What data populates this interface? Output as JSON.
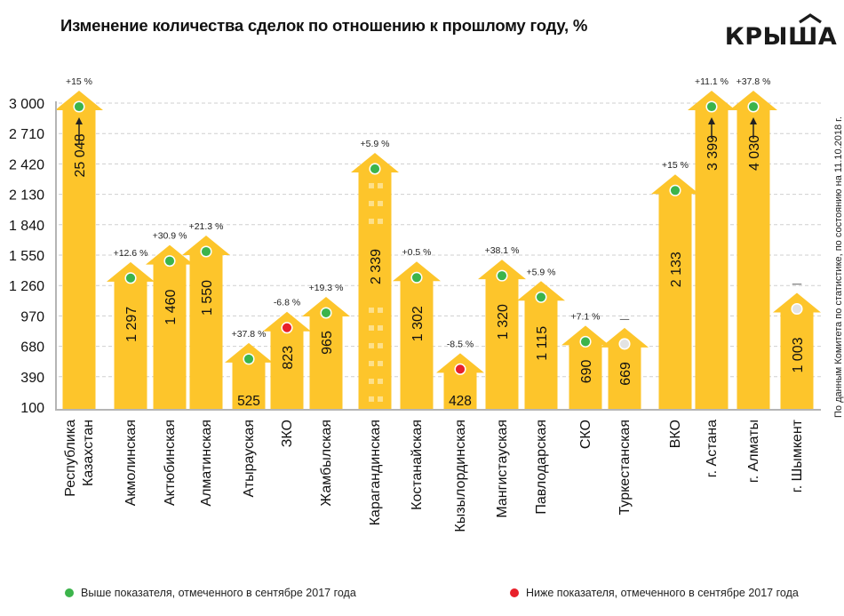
{
  "header": {
    "title": "Изменение количества сделок по отношению к прошлому году, %",
    "logo_text": "КРЫША"
  },
  "source_note": "По данным Комитета по статистике, по состоянию на 11.10.2018 г.",
  "legend": {
    "above": {
      "label": "Выше показателя, отмеченного в сентябре 2017 года",
      "color": "#3cb44b"
    },
    "below": {
      "label": "Ниже показателя, отмеченного в сентябре 2017 года",
      "color": "#e8202a"
    }
  },
  "colors": {
    "bar": "#fdc52b",
    "up": "#3cb44b",
    "down": "#e8202a",
    "none": "#e3e3e3",
    "grid": "#cfcfcf",
    "axis": "#b5b5b5"
  },
  "chart_data": {
    "type": "bar",
    "title": "Изменение количества сделок по отношению к прошлому году, %",
    "xlabel": "",
    "ylabel": "",
    "ylim": [
      100,
      3000
    ],
    "yticks": [
      "100",
      "390",
      "680",
      "970",
      "1 260",
      "1 550",
      "1 840",
      "2 130",
      "2 420",
      "2 710",
      "3 000"
    ],
    "ytick_values": [
      100,
      390,
      680,
      970,
      1260,
      1550,
      1840,
      2130,
      2420,
      2710,
      3000
    ],
    "grid": true,
    "legend_position": "bottom",
    "categories": [
      [
        "Республика",
        "Казахстан"
      ],
      [
        "Акмолинская"
      ],
      [
        "Актюбинская"
      ],
      [
        "Алматинская"
      ],
      [
        "Атырауская"
      ],
      [
        "ЗКО"
      ],
      [
        "Жамбылская"
      ],
      [
        "Карагандинская"
      ],
      [
        "Костанайская"
      ],
      [
        "Кызылординская"
      ],
      [
        "Мангистауская"
      ],
      [
        "Павлодарская"
      ],
      [
        "СКО"
      ],
      [
        "Туркестанская"
      ],
      [
        "ВКО"
      ],
      [
        "г. Астана"
      ],
      [
        "г. Алматы"
      ],
      [
        "г. Шымкент"
      ]
    ],
    "values": [
      25048,
      1297,
      1460,
      1550,
      525,
      823,
      965,
      2339,
      1302,
      428,
      1320,
      1115,
      690,
      669,
      2133,
      3399,
      4030,
      1003
    ],
    "value_labels": [
      "25 048",
      "1 297",
      "1 460",
      "1 550",
      "525",
      "823",
      "965",
      "2 339",
      "1 302",
      "428",
      "1 320",
      "1 115",
      "690",
      "669",
      "2 133",
      "3 399",
      "4 030",
      "1 003"
    ],
    "change_labels": [
      "+15 %",
      "+12.6 %",
      "+30.9 %",
      "+21.3 %",
      "+37.8 %",
      "-6.8 %",
      "+19.3 %",
      "+5.9 %",
      "+0.5 %",
      "-8.5 %",
      "+38.1 %",
      "+5.9 %",
      "+7.1 %",
      "—",
      "+15 %",
      "+11.1 %",
      "+37.8 %",
      "—"
    ],
    "status": [
      "up",
      "up",
      "up",
      "up",
      "up",
      "down",
      "up",
      "up",
      "up",
      "down",
      "up",
      "up",
      "up",
      "none",
      "up",
      "up",
      "up",
      "none"
    ],
    "exceeds_axis": [
      true,
      false,
      false,
      false,
      false,
      false,
      false,
      false,
      false,
      false,
      false,
      false,
      false,
      false,
      false,
      true,
      true,
      false
    ]
  }
}
